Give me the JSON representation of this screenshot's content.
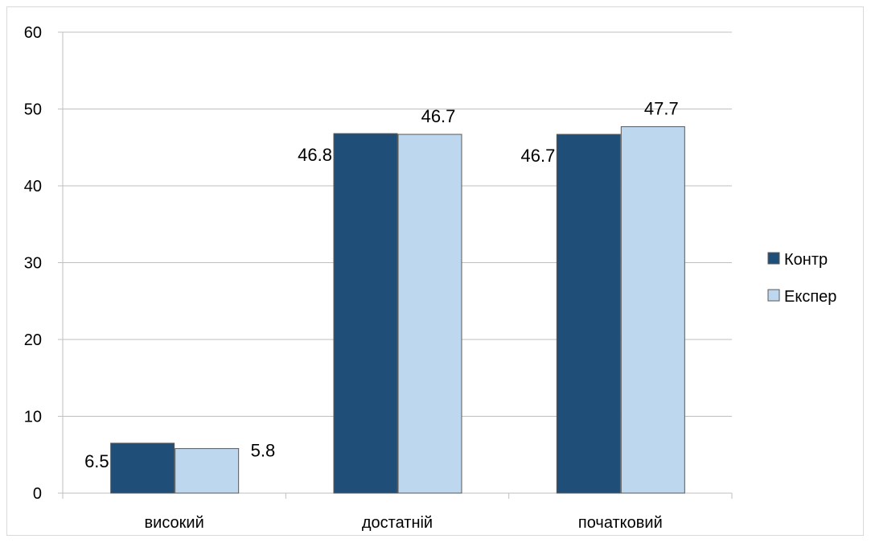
{
  "chart_data": {
    "type": "bar",
    "categories": [
      "високий",
      "достатній",
      "початковий"
    ],
    "series": [
      {
        "name": "Контр",
        "values": [
          6.5,
          46.8,
          46.7
        ],
        "color": "#1f4e79"
      },
      {
        "name": "Експер",
        "values": [
          5.8,
          46.7,
          47.7
        ],
        "color": "#bdd7ee"
      }
    ],
    "ylim": [
      0,
      60
    ],
    "yticks": [
      0,
      10,
      20,
      30,
      40,
      50,
      60
    ],
    "grid": true,
    "legend_position": "right",
    "title": "",
    "xlabel": "",
    "ylabel": ""
  }
}
